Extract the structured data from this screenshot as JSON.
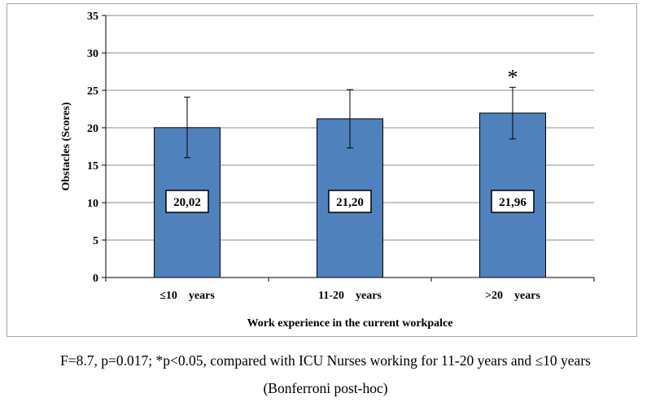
{
  "chart_data": {
    "type": "bar",
    "categories": [
      "≤10    years",
      "11-20    years",
      ">20    years"
    ],
    "values": [
      20.02,
      21.2,
      21.96
    ],
    "value_labels": [
      "20,02",
      "21,20",
      "21,96"
    ],
    "error_low": [
      16.0,
      17.3,
      18.5
    ],
    "error_high": [
      24.1,
      25.1,
      25.4
    ],
    "significance_markers": [
      "",
      "",
      "*"
    ],
    "xlabel": "Work experience in the current workpalce",
    "ylabel": "Obstacles (Scores)",
    "ylim": [
      0,
      35
    ],
    "yticks": [
      "0",
      "5",
      "10",
      "15",
      "20",
      "25",
      "30",
      "35"
    ],
    "grid": true,
    "bar_color": "#4f81bd"
  },
  "caption": {
    "line1": "F=8.7, p=0.017; *p<0.05, compared with ICU Nurses working for 11-20 years and ≤10 years",
    "line2": "(Bonferroni post-hoc)"
  }
}
